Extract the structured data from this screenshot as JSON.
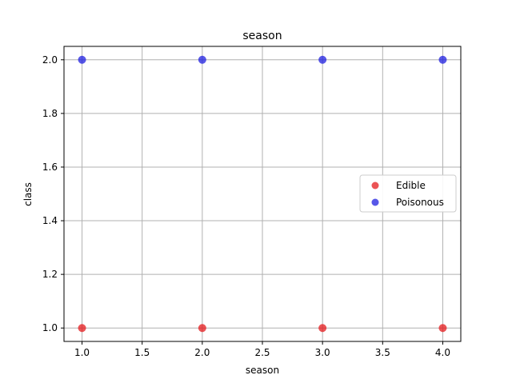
{
  "chart_data": {
    "type": "scatter",
    "title": "season",
    "xlabel": "season",
    "ylabel": "class",
    "xlim": [
      0.85,
      4.15
    ],
    "ylim": [
      0.95,
      2.05
    ],
    "xticks": [
      1.0,
      1.5,
      2.0,
      2.5,
      3.0,
      3.5,
      4.0
    ],
    "yticks": [
      1.0,
      1.2,
      1.4,
      1.6,
      1.8,
      2.0
    ],
    "xtick_labels": [
      "1.0",
      "1.5",
      "2.0",
      "2.5",
      "3.0",
      "3.5",
      "4.0"
    ],
    "ytick_labels": [
      "1.0",
      "1.2",
      "1.4",
      "1.6",
      "1.8",
      "2.0"
    ],
    "grid": true,
    "legend_position": "center-right",
    "series": [
      {
        "name": "Edible",
        "color": "#e41a1c",
        "points": [
          [
            1.0,
            1.0
          ],
          [
            2.0,
            1.0
          ],
          [
            3.0,
            1.0
          ],
          [
            4.0,
            1.0
          ]
        ]
      },
      {
        "name": "Poisonous",
        "color": "#1f1fe0",
        "points": [
          [
            1.0,
            2.0
          ],
          [
            2.0,
            2.0
          ],
          [
            3.0,
            2.0
          ],
          [
            4.0,
            2.0
          ]
        ]
      }
    ]
  }
}
